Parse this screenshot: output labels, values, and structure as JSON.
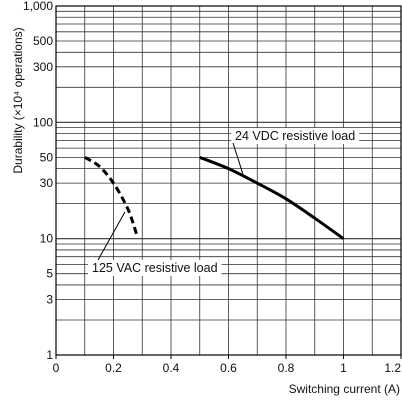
{
  "chart_data": {
    "type": "line",
    "title": "",
    "xlabel": "Switching current (A)",
    "ylabel": "Durability (×10⁴ operations)",
    "xlim": [
      0,
      1.2
    ],
    "ylim": [
      1,
      1000
    ],
    "yscale": "log",
    "grid": true,
    "x_ticks": [
      0,
      0.2,
      0.4,
      0.6,
      0.8,
      1,
      1.2
    ],
    "x_tick_labels": [
      "0",
      "0.2",
      "0.4",
      "0.6",
      "0.8",
      "1",
      "1.2"
    ],
    "y_ticks": [
      1,
      3,
      5,
      10,
      30,
      50,
      100,
      300,
      500,
      1000
    ],
    "y_tick_labels": [
      "1",
      "3",
      "5",
      "10",
      "30",
      "50",
      "100",
      "300",
      "500",
      "1,000"
    ],
    "series": [
      {
        "name": "24 VDC resistive load",
        "style": "solid",
        "x": [
          0.5,
          0.6,
          0.7,
          0.8,
          0.9,
          1.0
        ],
        "y": [
          50,
          40,
          30,
          22,
          15,
          10
        ]
      },
      {
        "name": "125 VAC resistive load",
        "style": "dashed",
        "x": [
          0.1,
          0.15,
          0.2,
          0.25,
          0.28
        ],
        "y": [
          50,
          42,
          30,
          18,
          11
        ]
      }
    ],
    "colors": {
      "line": "#000000",
      "grid": "#333333",
      "axis": "#000000",
      "background": "#ffffff"
    }
  }
}
